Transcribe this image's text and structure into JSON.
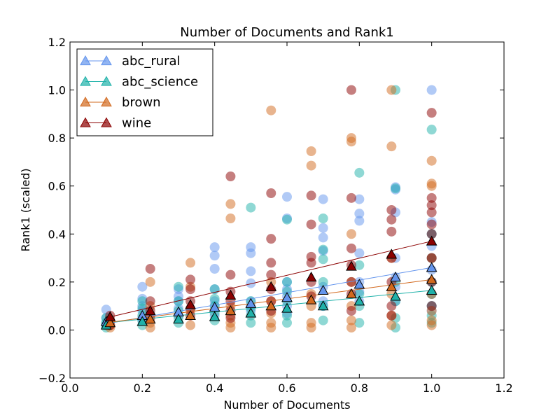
{
  "chart_data": {
    "type": "scatter",
    "title": "Number of Documents and Rank1",
    "xlabel": "Number of Documents",
    "ylabel": "Rank1 (scaled)",
    "xlim": [
      0.0,
      1.2
    ],
    "ylim": [
      -0.2,
      1.2
    ],
    "xticks": [
      "0.0",
      "0.2",
      "0.4",
      "0.6",
      "0.8",
      "1.0",
      "1.2"
    ],
    "yticks": [
      "−0.2",
      "0.0",
      "0.2",
      "0.4",
      "0.6",
      "0.8",
      "1.0",
      "1.2"
    ],
    "legend_position": "top-left",
    "grid": false,
    "series": [
      {
        "name": "abc_rural",
        "color": "#6495ed",
        "scatter_x": [
          0.1,
          0.1,
          0.1,
          0.1,
          0.2,
          0.2,
          0.2,
          0.2,
          0.2,
          0.2,
          0.3,
          0.3,
          0.3,
          0.3,
          0.3,
          0.4,
          0.4,
          0.4,
          0.4,
          0.4,
          0.4,
          0.4,
          0.5,
          0.5,
          0.5,
          0.5,
          0.5,
          0.5,
          0.5,
          0.6,
          0.6,
          0.6,
          0.6,
          0.6,
          0.6,
          0.6,
          0.7,
          0.7,
          0.7,
          0.7,
          0.7,
          0.7,
          0.7,
          0.8,
          0.8,
          0.8,
          0.8,
          0.8,
          0.8,
          0.8,
          0.9,
          0.9,
          0.9,
          0.9,
          0.9,
          0.9,
          0.9,
          1.0,
          1.0,
          1.0,
          1.0,
          1.0,
          1.0,
          1.0,
          1.0,
          1.0,
          1.0
        ],
        "scatter_y": [
          0.085,
          0.05,
          0.03,
          0.02,
          0.18,
          0.13,
          0.1,
          0.08,
          0.05,
          0.04,
          0.17,
          0.14,
          0.12,
          0.09,
          0.06,
          0.345,
          0.31,
          0.255,
          0.17,
          0.12,
          0.1,
          0.06,
          0.345,
          0.32,
          0.245,
          0.195,
          0.12,
          0.1,
          0.08,
          0.555,
          0.465,
          0.2,
          0.17,
          0.14,
          0.1,
          0.07,
          0.545,
          0.425,
          0.385,
          0.33,
          0.18,
          0.12,
          0.1,
          0.545,
          0.485,
          0.455,
          0.32,
          0.2,
          0.16,
          0.12,
          0.595,
          0.585,
          0.49,
          0.3,
          0.22,
          0.18,
          0.12,
          1.0,
          0.45,
          0.4,
          0.35,
          0.3,
          0.25,
          0.2,
          0.15,
          0.1,
          0.08
        ],
        "line_x": [
          0.1,
          0.2,
          0.3,
          0.4,
          0.5,
          0.6,
          0.7,
          0.8,
          0.9,
          1.0
        ],
        "line_y": [
          0.035,
          0.06,
          0.075,
          0.095,
          0.11,
          0.135,
          0.165,
          0.19,
          0.22,
          0.26
        ],
        "fit": [
          0.0,
          0.26
        ]
      },
      {
        "name": "abc_science",
        "color": "#20b2aa",
        "scatter_x": [
          0.1,
          0.1,
          0.1,
          0.1,
          0.2,
          0.2,
          0.2,
          0.2,
          0.2,
          0.3,
          0.3,
          0.3,
          0.3,
          0.3,
          0.4,
          0.4,
          0.4,
          0.4,
          0.4,
          0.5,
          0.5,
          0.5,
          0.5,
          0.5,
          0.6,
          0.6,
          0.6,
          0.6,
          0.6,
          0.6,
          0.7,
          0.7,
          0.7,
          0.7,
          0.7,
          0.7,
          0.8,
          0.8,
          0.8,
          0.8,
          0.8,
          0.9,
          0.9,
          0.9,
          0.9,
          0.9,
          0.9,
          1.0,
          1.0,
          1.0,
          1.0,
          1.0,
          1.0,
          1.0,
          1.0
        ],
        "scatter_y": [
          0.05,
          0.03,
          0.02,
          0.01,
          0.12,
          0.09,
          0.06,
          0.04,
          0.02,
          0.18,
          0.12,
          0.08,
          0.05,
          0.03,
          0.17,
          0.13,
          0.1,
          0.07,
          0.04,
          0.51,
          0.12,
          0.09,
          0.06,
          0.03,
          0.46,
          0.2,
          0.16,
          0.12,
          0.06,
          0.03,
          0.465,
          0.335,
          0.295,
          0.2,
          0.1,
          0.04,
          0.655,
          0.27,
          0.15,
          0.1,
          0.03,
          1.0,
          0.59,
          0.2,
          0.12,
          0.05,
          0.01,
          0.835,
          0.4,
          0.3,
          0.2,
          0.15,
          0.1,
          0.06,
          0.03
        ],
        "line_x": [
          0.1,
          0.2,
          0.3,
          0.4,
          0.5,
          0.6,
          0.7,
          0.8,
          0.9,
          1.0
        ],
        "line_y": [
          0.02,
          0.035,
          0.045,
          0.055,
          0.07,
          0.09,
          0.1,
          0.12,
          0.14,
          0.165
        ],
        "fit": [
          0.015,
          0.15
        ]
      },
      {
        "name": "brown",
        "color": "#d2691e",
        "scatter_x": [
          0.111,
          0.111,
          0.111,
          0.222,
          0.222,
          0.222,
          0.222,
          0.222,
          0.333,
          0.333,
          0.333,
          0.333,
          0.444,
          0.444,
          0.444,
          0.444,
          0.444,
          0.444,
          0.556,
          0.556,
          0.556,
          0.556,
          0.556,
          0.556,
          0.667,
          0.667,
          0.667,
          0.667,
          0.667,
          0.667,
          0.778,
          0.778,
          0.778,
          0.778,
          0.778,
          0.778,
          0.778,
          0.889,
          0.889,
          0.889,
          0.889,
          0.889,
          0.889,
          1.0,
          1.0,
          1.0,
          1.0,
          1.0,
          1.0,
          1.0,
          1.0
        ],
        "scatter_y": [
          0.04,
          0.02,
          0.01,
          0.2,
          0.1,
          0.06,
          0.03,
          0.01,
          0.28,
          0.18,
          0.08,
          0.02,
          0.525,
          0.465,
          0.1,
          0.06,
          0.03,
          0.01,
          0.915,
          0.2,
          0.12,
          0.07,
          0.03,
          0.01,
          0.745,
          0.685,
          0.15,
          0.1,
          0.03,
          0.01,
          0.8,
          0.785,
          0.4,
          0.2,
          0.1,
          0.04,
          0.01,
          1.0,
          0.765,
          0.3,
          0.15,
          0.06,
          0.02,
          0.705,
          0.61,
          0.6,
          0.3,
          0.15,
          0.08,
          0.04,
          0.02
        ],
        "line_x": [
          0.111,
          0.222,
          0.333,
          0.444,
          0.556,
          0.667,
          0.778,
          0.889,
          1.0
        ],
        "line_y": [
          0.03,
          0.045,
          0.06,
          0.08,
          0.1,
          0.125,
          0.15,
          0.18,
          0.21
        ],
        "fit": [
          0.01,
          0.2
        ]
      },
      {
        "name": "wine",
        "color": "#8b0000",
        "scatter_x": [
          0.111,
          0.111,
          0.111,
          0.222,
          0.222,
          0.222,
          0.222,
          0.333,
          0.333,
          0.333,
          0.333,
          0.333,
          0.444,
          0.444,
          0.444,
          0.444,
          0.444,
          0.444,
          0.556,
          0.556,
          0.556,
          0.556,
          0.556,
          0.556,
          0.556,
          0.667,
          0.667,
          0.667,
          0.667,
          0.667,
          0.667,
          0.778,
          0.778,
          0.778,
          0.778,
          0.778,
          0.778,
          0.778,
          0.889,
          0.889,
          0.889,
          0.889,
          0.889,
          0.889,
          0.889,
          1.0,
          1.0,
          1.0,
          1.0,
          1.0,
          1.0,
          1.0,
          1.0,
          1.0
        ],
        "scatter_y": [
          0.06,
          0.04,
          0.02,
          0.255,
          0.12,
          0.08,
          0.05,
          0.21,
          0.17,
          0.12,
          0.09,
          0.06,
          0.64,
          0.23,
          0.16,
          0.12,
          0.08,
          0.05,
          0.57,
          0.38,
          0.28,
          0.23,
          0.17,
          0.12,
          0.08,
          0.56,
          0.44,
          0.305,
          0.28,
          0.2,
          0.14,
          1.0,
          0.55,
          0.34,
          0.27,
          0.2,
          0.15,
          0.08,
          0.5,
          0.46,
          0.41,
          0.3,
          0.2,
          0.1,
          0.06,
          0.905,
          0.55,
          0.52,
          0.49,
          0.44,
          0.4,
          0.3,
          0.2,
          0.1
        ],
        "line_x": [
          0.111,
          0.222,
          0.333,
          0.444,
          0.556,
          0.667,
          0.778,
          0.889,
          1.0
        ],
        "line_y": [
          0.055,
          0.08,
          0.105,
          0.145,
          0.18,
          0.22,
          0.265,
          0.315,
          0.37
        ],
        "fit": [
          0.015,
          0.355
        ]
      }
    ]
  }
}
